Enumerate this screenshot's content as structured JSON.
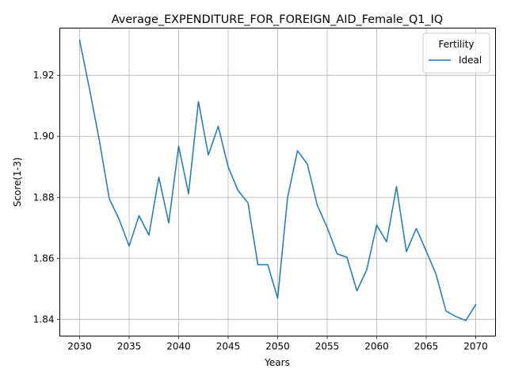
{
  "chart_data": {
    "type": "line",
    "title": "Average_EXPENDITURE_FOR_FOREIGN_AID_Female_Q1_IQ",
    "xlabel": "Years",
    "ylabel": "Score(1-3)",
    "xlim": [
      2028.0,
      2072.0
    ],
    "ylim": [
      1.8345,
      1.9355
    ],
    "x_ticks": [
      2030,
      2035,
      2040,
      2045,
      2050,
      2055,
      2060,
      2065,
      2070
    ],
    "y_ticks": [
      1.84,
      1.86,
      1.88,
      1.9,
      1.92
    ],
    "y_tick_labels": [
      "1.84",
      "1.86",
      "1.88",
      "1.90",
      "1.92"
    ],
    "grid": true,
    "legend": {
      "title": "Fertility",
      "position": "top-right"
    },
    "series": [
      {
        "name": "Ideal",
        "color": "#1f77b4",
        "x": [
          2030,
          2031,
          2032,
          2033,
          2034,
          2035,
          2036,
          2037,
          2038,
          2039,
          2040,
          2041,
          2042,
          2043,
          2044,
          2045,
          2046,
          2047,
          2048,
          2049,
          2050,
          2051,
          2052,
          2053,
          2054,
          2055,
          2056,
          2057,
          2058,
          2059,
          2060,
          2061,
          2062,
          2063,
          2064,
          2065,
          2066,
          2067,
          2068,
          2069,
          2070
        ],
        "y": [
          1.9315,
          1.9155,
          1.8985,
          1.8795,
          1.8727,
          1.864,
          1.874,
          1.8676,
          1.8866,
          1.8716,
          1.8968,
          1.8812,
          1.9114,
          1.8939,
          1.9033,
          1.89,
          1.8822,
          1.8782,
          1.8579,
          1.8579,
          1.8469,
          1.8799,
          1.8953,
          1.8909,
          1.8774,
          1.8701,
          1.8615,
          1.8603,
          1.8493,
          1.8563,
          1.8709,
          1.8654,
          1.8835,
          1.8622,
          1.8698,
          1.8624,
          1.8547,
          1.8427,
          1.8409,
          1.8396,
          1.8448
        ]
      }
    ]
  }
}
